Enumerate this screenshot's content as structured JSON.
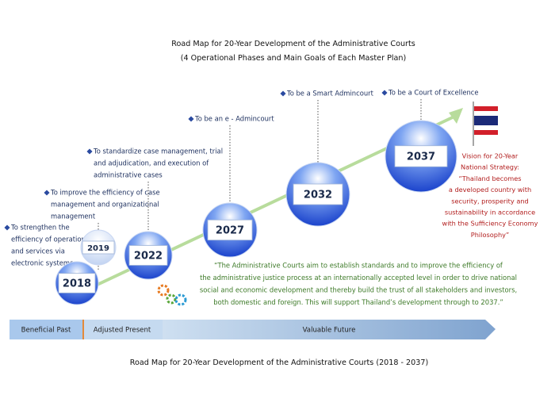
{
  "header": {
    "title": "Road Map for 20-Year Development of the Administrative Courts",
    "subtitle": "(4 Operational Phases and Main Goals of Each Master Plan)"
  },
  "milestones": [
    "2018",
    "2019",
    "2022",
    "2027",
    "2032",
    "2037"
  ],
  "goals": [
    [
      "To strengthen the",
      "efficiency of operation",
      "and services via",
      "electronic systems"
    ],
    [
      "To improve the efficiency of case",
      "management and organizational",
      "management"
    ],
    [
      "To standardize case management, trial",
      "and adjudication, and execution of",
      "administrative cases"
    ],
    [
      "To be an e - Admincourt"
    ],
    [
      "To be a Smart Admincourt"
    ],
    [
      "To be a Court of Excellence"
    ]
  ],
  "vision": [
    "Vision for 20-Year",
    "National Strategy:",
    "“Thailand becomes",
    "a developed country with",
    "security, prosperity and",
    "sustainability in accordance",
    "with the Sufficiency Economy",
    "Philosophy”"
  ],
  "quote": [
    "“The Administrative Courts aim to establish standards and to improve the efficiency of",
    "the administrative justice process at an internationally accepted level in order to drive national",
    "social and economic development and thereby build the trust of all stakeholders and investors,",
    "both domestic and foreign. This will support Thailand’s development through to 2037.”"
  ],
  "timeline": [
    "Beneficial Past",
    "Adjusted Present",
    "Valuable Future"
  ],
  "caption": "Road Map for 20-Year Development of the Administrative Courts (2018 - 2037)"
}
